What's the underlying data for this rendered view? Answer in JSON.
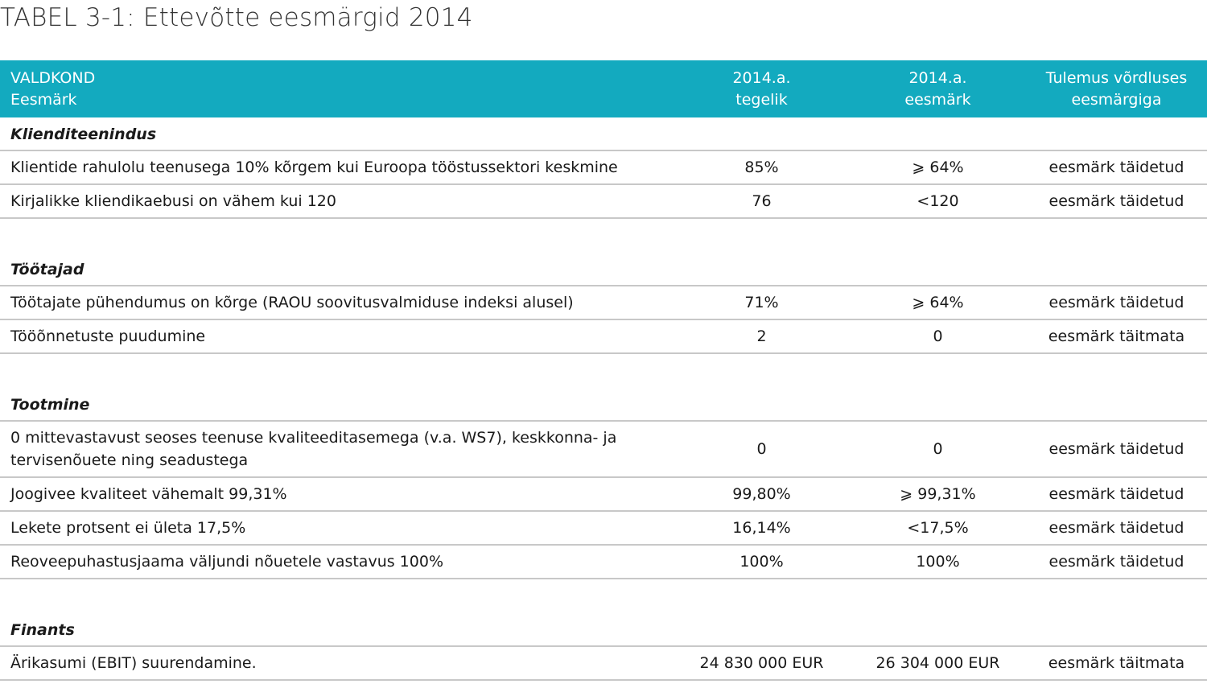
{
  "title": "TABEL 3-1: Ettevõtte eesmärgid 2014",
  "header": {
    "col1_line1": "VALDKOND",
    "col1_line2": "Eesmärk",
    "col2_line1": "2014.a.",
    "col2_line2": "tegelik",
    "col3_line1": "2014.a.",
    "col3_line2": "eesmärk",
    "col4_line1": "Tulemus võrdluses",
    "col4_line2": "eesmärgiga"
  },
  "sections": [
    {
      "name": "Klienditeenindus",
      "rows": [
        {
          "goal": "Klientide rahulolu teenusega 10% kõrgem kui Euroopa tööstussektori keskmine",
          "actual": "85%",
          "target": "⩾ 64%",
          "result": "eesmärk täidetud"
        },
        {
          "goal": "Kirjalikke kliendikaebusi on vähem kui 120",
          "actual": "76",
          "target": "<120",
          "result": "eesmärk täidetud"
        }
      ]
    },
    {
      "name": "Töötajad",
      "rows": [
        {
          "goal": "Töötajate pühendumus on kõrge (RAOU soovitusvalmiduse indeksi alusel)",
          "actual": "71%",
          "target": "⩾ 64%",
          "result": "eesmärk täidetud"
        },
        {
          "goal": "Tööõnnetuste puudumine",
          "actual": "2",
          "target": "0",
          "result": "eesmärk täitmata"
        }
      ]
    },
    {
      "name": "Tootmine",
      "rows": [
        {
          "goal": "0 mittevastavust seoses teenuse kvaliteeditasemega (v.a. WS7), keskkonna- ja tervisenõuete ning seadustega",
          "actual": "0",
          "target": "0",
          "result": "eesmärk täidetud"
        },
        {
          "goal": "Joogivee kvaliteet vähemalt 99,31%",
          "actual": "99,80%",
          "target": "⩾ 99,31%",
          "result": "eesmärk täidetud"
        },
        {
          "goal": "Lekete protsent ei ületa 17,5%",
          "actual": "16,14%",
          "target": "<17,5%",
          "result": "eesmärk täidetud"
        },
        {
          "goal": "Reoveepuhastusjaama väljundi nõuetele vastavus 100%",
          "actual": "100%",
          "target": "100%",
          "result": "eesmärk täidetud"
        }
      ]
    },
    {
      "name": "Finants",
      "rows": [
        {
          "goal": "Ärikasumi (EBIT) suurendamine.",
          "actual": "24 830 000 EUR",
          "target": "26 304 000 EUR",
          "result": "eesmärk täitmata"
        }
      ]
    }
  ]
}
